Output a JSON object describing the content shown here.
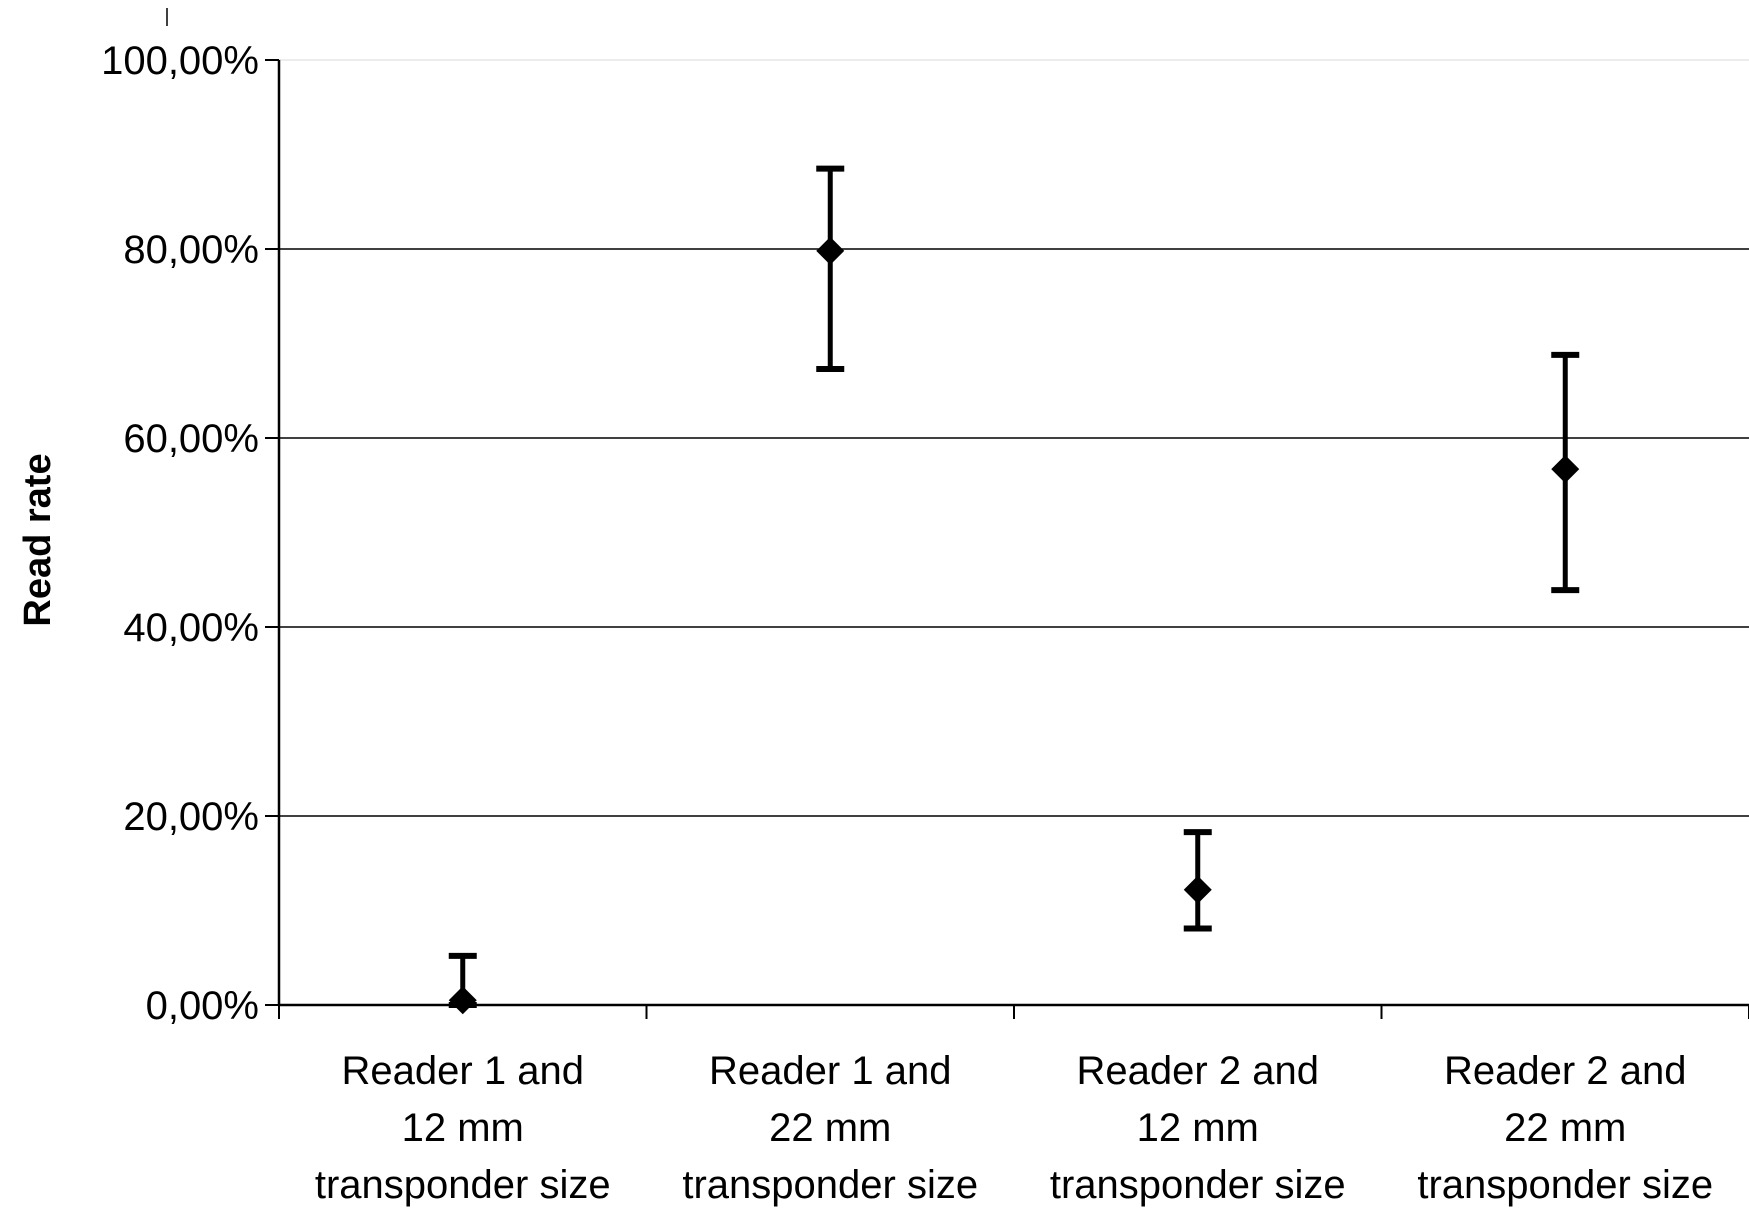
{
  "chart_data": {
    "type": "scatter",
    "title": "",
    "ylabel": "Read rate",
    "xlabel": "",
    "ylim": [
      0,
      100
    ],
    "y_ticks": [
      "0,00%",
      "20,00%",
      "40,00%",
      "60,00%",
      "80,00%",
      "100,00%"
    ],
    "y_tick_values": [
      0,
      20,
      40,
      60,
      80,
      100
    ],
    "grid": true,
    "categories": [
      [
        "Reader 1 and",
        "12 mm",
        "transponder size"
      ],
      [
        "Reader 1 and",
        "22 mm",
        "transponder size"
      ],
      [
        "Reader 2 and",
        "12 mm",
        "transponder size"
      ],
      [
        "Reader 2 and",
        "22 mm",
        "transponder size"
      ]
    ],
    "series": [
      {
        "values": [
          0.5,
          79.8,
          12.2,
          56.7
        ],
        "error_low": [
          0.0,
          67.3,
          8.1,
          43.9
        ],
        "error_high": [
          5.2,
          88.5,
          18.3,
          68.8
        ],
        "marker": "diamond",
        "color": "#000000"
      }
    ]
  }
}
